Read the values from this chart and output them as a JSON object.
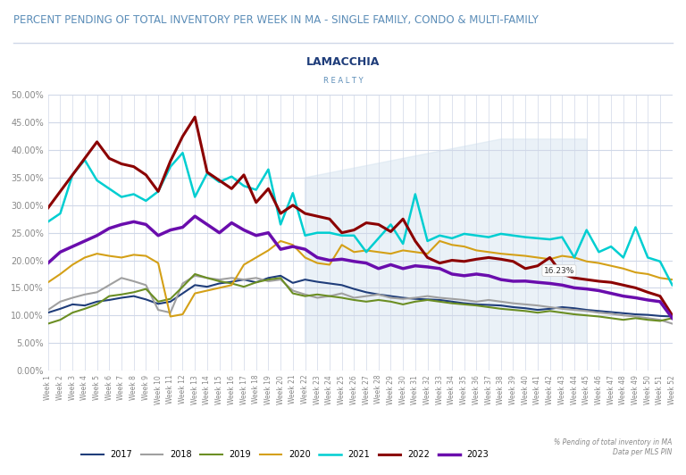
{
  "title": "PERCENT PENDING OF TOTAL INVENTORY PER WEEK IN MA - SINGLE FAMILY, CONDO & MULTI-FAMILY",
  "subtitle_note": "% Pending of total inventory in MA\nData per MLS PIN",
  "ylim": [
    0,
    50
  ],
  "yticks": [
    0,
    5,
    10,
    15,
    20,
    25,
    30,
    35,
    40,
    45,
    50
  ],
  "ytick_labels": [
    "0.00%",
    "5.00%",
    "10.00%",
    "15.00%",
    "20.00%",
    "25.00%",
    "30.00%",
    "35.00%",
    "40.00%",
    "45.00%",
    "50.00%"
  ],
  "annotation_text": "16.23%",
  "annotation_week": 40,
  "annotation_value": 16.23,
  "years": [
    "2017",
    "2018",
    "2019",
    "2020",
    "2021",
    "2022",
    "2023"
  ],
  "colors": {
    "2017": "#1f3d7a",
    "2018": "#a0a0a0",
    "2019": "#6b8e23",
    "2020": "#d4a017",
    "2021": "#00ced1",
    "2022": "#8b0000",
    "2023": "#6a0dad"
  },
  "linewidths": {
    "2017": 1.5,
    "2018": 1.5,
    "2019": 1.5,
    "2020": 1.5,
    "2021": 1.8,
    "2022": 2.2,
    "2023": 2.5
  },
  "background_color": "#ffffff",
  "plot_bg_color": "#ffffff",
  "grid_color": "#d0d8e8",
  "title_color": "#5b8db8",
  "weeks": 52,
  "data": {
    "2017": [
      10.5,
      11.2,
      12.0,
      11.8,
      12.5,
      12.8,
      13.2,
      13.5,
      12.9,
      12.1,
      12.5,
      14.0,
      15.5,
      15.2,
      15.8,
      16.1,
      16.5,
      16.0,
      16.8,
      17.2,
      15.9,
      16.5,
      16.1,
      15.8,
      15.5,
      14.8,
      14.2,
      13.8,
      13.5,
      13.2,
      13.0,
      12.9,
      12.8,
      12.5,
      12.2,
      12.0,
      11.9,
      11.8,
      11.5,
      11.3,
      11.0,
      11.2,
      11.5,
      11.3,
      11.0,
      10.8,
      10.6,
      10.4,
      10.2,
      10.1,
      9.9,
      9.8
    ],
    "2018": [
      11.0,
      12.5,
      13.2,
      13.8,
      14.2,
      15.5,
      16.8,
      16.2,
      15.5,
      11.0,
      10.5,
      15.8,
      17.2,
      16.8,
      16.5,
      16.8,
      16.5,
      16.8,
      16.2,
      16.5,
      14.5,
      13.8,
      13.2,
      13.5,
      14.0,
      13.2,
      13.5,
      13.8,
      13.2,
      13.0,
      13.2,
      13.5,
      13.2,
      13.0,
      12.8,
      12.5,
      12.8,
      12.5,
      12.2,
      12.0,
      11.8,
      11.5,
      11.2,
      11.0,
      10.8,
      10.5,
      10.3,
      10.0,
      9.8,
      9.5,
      9.2,
      8.5
    ],
    "2019": [
      8.5,
      9.2,
      10.5,
      11.2,
      12.0,
      13.5,
      13.8,
      14.2,
      14.8,
      12.5,
      13.0,
      15.2,
      17.5,
      16.8,
      16.2,
      15.8,
      15.2,
      16.0,
      16.5,
      16.8,
      14.0,
      13.5,
      13.8,
      13.5,
      13.2,
      12.8,
      12.5,
      12.8,
      12.5,
      12.0,
      12.5,
      12.8,
      12.5,
      12.2,
      12.0,
      11.8,
      11.5,
      11.2,
      11.0,
      10.8,
      10.5,
      10.8,
      10.5,
      10.2,
      10.0,
      9.8,
      9.5,
      9.2,
      9.5,
      9.2,
      9.0,
      9.5
    ],
    "2020": [
      16.0,
      17.5,
      19.2,
      20.5,
      21.2,
      20.8,
      20.5,
      21.0,
      20.8,
      19.5,
      9.8,
      10.2,
      14.0,
      14.5,
      15.0,
      15.5,
      19.2,
      20.5,
      21.8,
      23.5,
      22.8,
      20.5,
      19.5,
      19.2,
      22.8,
      21.5,
      21.8,
      21.5,
      21.2,
      21.8,
      21.5,
      21.2,
      23.5,
      22.8,
      22.5,
      21.8,
      21.5,
      21.2,
      21.0,
      20.8,
      20.5,
      20.2,
      20.8,
      20.5,
      19.8,
      19.5,
      19.0,
      18.5,
      17.8,
      17.5,
      16.8,
      16.5
    ],
    "2021": [
      27.0,
      28.5,
      35.5,
      38.2,
      34.5,
      33.0,
      31.5,
      32.0,
      30.8,
      32.5,
      37.0,
      39.5,
      31.5,
      35.8,
      34.2,
      35.2,
      33.5,
      32.8,
      36.5,
      26.5,
      32.2,
      24.5,
      25.0,
      25.0,
      24.5,
      24.5,
      21.5,
      24.0,
      26.5,
      23.0,
      32.0,
      23.5,
      24.5,
      24.0,
      24.8,
      24.5,
      24.2,
      24.8,
      24.5,
      24.2,
      24.0,
      23.8,
      24.2,
      20.5,
      25.5,
      21.5,
      22.5,
      20.5,
      26.0,
      20.5,
      19.8,
      15.5
    ],
    "2022": [
      29.5,
      32.5,
      35.5,
      38.5,
      41.5,
      38.5,
      37.5,
      37.0,
      35.5,
      32.5,
      38.0,
      42.5,
      46.0,
      36.0,
      34.5,
      33.0,
      35.5,
      30.5,
      33.0,
      28.5,
      30.0,
      28.5,
      28.0,
      27.5,
      25.0,
      25.5,
      26.8,
      26.5,
      25.2,
      27.5,
      23.5,
      20.5,
      19.5,
      20.0,
      19.8,
      20.2,
      20.5,
      20.2,
      19.8,
      18.5,
      19.0,
      20.5,
      17.5,
      16.8,
      16.5,
      16.2,
      16.0,
      15.5,
      15.0,
      14.2,
      13.5,
      10.0
    ],
    "2023": [
      19.5,
      21.5,
      22.5,
      23.5,
      24.5,
      25.8,
      26.5,
      27.0,
      26.5,
      24.5,
      25.5,
      26.0,
      28.0,
      26.5,
      25.0,
      26.8,
      25.5,
      24.5,
      25.0,
      22.0,
      22.5,
      22.0,
      20.5,
      20.0,
      20.2,
      19.8,
      19.5,
      18.5,
      19.2,
      18.5,
      19.0,
      18.8,
      18.5,
      17.5,
      17.2,
      17.5,
      17.2,
      16.5,
      16.2,
      16.23,
      16.0,
      15.8,
      15.5,
      15.0,
      14.8,
      14.5,
      14.0,
      13.5,
      13.2,
      12.8,
      12.5,
      9.5
    ]
  }
}
